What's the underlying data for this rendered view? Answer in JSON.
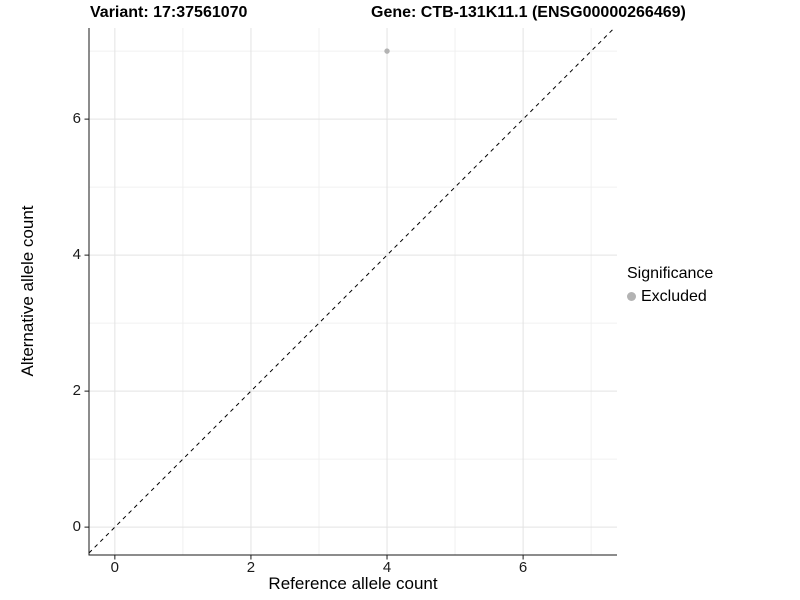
{
  "chart_data": {
    "type": "scatter",
    "title_left": "Variant: 17:37561070",
    "title_right": "Gene: CTB-131K11.1 (ENSG00000266469)",
    "xlabel": "Reference allele count",
    "ylabel": "Alternative allele count",
    "xlim": [
      -0.38,
      7.38
    ],
    "ylim": [
      -0.41,
      7.34
    ],
    "x_major_ticks": [
      0,
      2,
      4,
      6
    ],
    "y_major_ticks": [
      0,
      2,
      4,
      6
    ],
    "x_minor_ticks": [
      1,
      3,
      5,
      7
    ],
    "y_minor_ticks": [
      1,
      3,
      5,
      7
    ],
    "grid": true,
    "points": [
      {
        "x": 4,
        "y": 7,
        "series": "Excluded"
      }
    ],
    "reference_line": {
      "type": "identity",
      "style": "dashed"
    },
    "legend": {
      "position": "right",
      "title": "Significance",
      "entries": [
        {
          "label": "Excluded",
          "color": "#b3b3b3"
        }
      ]
    },
    "colors": {
      "point": "#b3b3b3",
      "grid_major": "#e3e3e3",
      "grid_minor": "#f0f0f0",
      "axis": "#1a1a1a",
      "reference_line": "#000000",
      "background": "#ffffff"
    }
  }
}
